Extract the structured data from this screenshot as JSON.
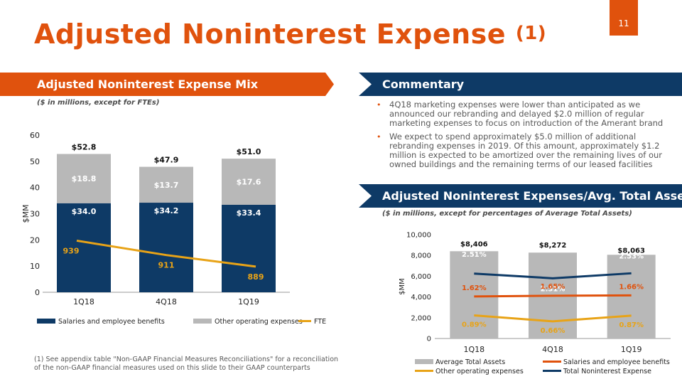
{
  "page": {
    "number": "11",
    "title": "Adjusted Noninterest Expense",
    "title_superscript": "(1)",
    "footnote": "(1) See appendix table \"Non-GAAP Financial Measures Reconciliations\" for a reconciliation of the non-GAAP financial measures used on this slide to their GAAP counterparts"
  },
  "left_panel": {
    "heading": "Adjusted Noninterest Expense Mix",
    "subnote": "($ in millions, except for FTEs)"
  },
  "commentary": {
    "heading": "Commentary",
    "bullets": [
      "4Q18 marketing expenses were lower than anticipated as we announced our rebranding and delayed $2.0 million of regular marketing expenses to focus on introduction of the Amerant brand",
      "We expect to spend approximately $5.0 million of additional rebranding expenses in 2019. Of this amount, approximately $1.2 million is expected to be amortized over the remaining lives of our owned buildings and the remaining terms of our leased facilities"
    ],
    "bullet_glyph": "•"
  },
  "right_panel": {
    "heading": "Adjusted Noninterest Expenses/Avg. Total Assets",
    "subnote": "($ in millions, except for percentages of Average Total Assets)"
  },
  "colors": {
    "orange": "#E0520D",
    "navy": "#0E3A66",
    "gray": "#B8B8B8",
    "gold": "#E8A317"
  },
  "chart_data": [
    {
      "type": "bar",
      "stacked": true,
      "categories": [
        "1Q18",
        "4Q18",
        "1Q19"
      ],
      "ylabel": "$MM",
      "ylim": [
        0,
        60
      ],
      "yticks": [
        "0",
        "10",
        "20",
        "30",
        "40",
        "50",
        "60"
      ],
      "series": [
        {
          "name": "Salaries and employee benefits",
          "values": [
            34.0,
            34.2,
            33.4
          ],
          "labels": [
            "$34.0",
            "$34.2",
            "$33.4"
          ]
        },
        {
          "name": "Other operating expenses",
          "values": [
            18.8,
            13.7,
            17.6
          ],
          "labels": [
            "$18.8",
            "$13.7",
            "$17.6"
          ]
        }
      ],
      "totals": [
        "$52.8",
        "$47.9",
        "$51.0"
      ],
      "line": {
        "name": "FTE",
        "values": [
          939,
          911,
          889
        ],
        "labels": [
          "939",
          "911",
          "889"
        ],
        "plot_values": [
          19.7,
          14.2,
          9.8
        ]
      },
      "legend": [
        "Salaries and employee benefits",
        "Other operating expenses",
        "FTE"
      ]
    },
    {
      "type": "bar",
      "categories": [
        "1Q18",
        "4Q18",
        "1Q19"
      ],
      "ylabel": "$MM",
      "ylim": [
        0,
        10000
      ],
      "yticks": [
        "0",
        "2,000",
        "4,000",
        "6,000",
        "8,000",
        "10,000"
      ],
      "bars": {
        "name": "Average Total Assets",
        "values": [
          8406,
          8272,
          8063
        ],
        "labels": [
          "$8,406",
          "$8,272",
          "$8,063"
        ]
      },
      "lines": [
        {
          "name": "Total Noninterest Expense",
          "labels": [
            "2.51%",
            "2.31%",
            "2.53%"
          ],
          "plot_values": [
            6250,
            5800,
            6280
          ]
        },
        {
          "name": "Salaries and employee benefits",
          "labels": [
            "1.62%",
            "1.65%",
            "1.66%"
          ],
          "plot_values": [
            4050,
            4120,
            4150
          ]
        },
        {
          "name": "Other operating expenses",
          "labels": [
            "0.89%",
            "0.66%",
            "0.87%"
          ],
          "plot_values": [
            2230,
            1650,
            2200
          ]
        }
      ],
      "legend": [
        "Average Total Assets",
        "Salaries and employee benefits",
        "Other operating expenses",
        "Total Noninterest Expense"
      ]
    }
  ]
}
